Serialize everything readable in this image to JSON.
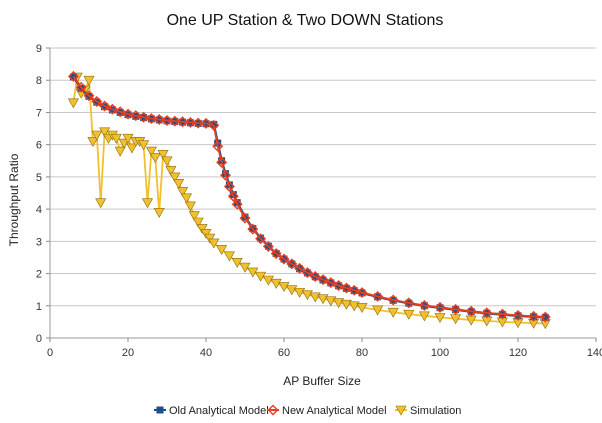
{
  "chart_data": {
    "type": "line",
    "title": "One UP Station & Two DOWN Stations",
    "xlabel": "AP Buffer Size",
    "ylabel": "Throughput Ratio",
    "xlim": [
      0,
      140
    ],
    "ylim": [
      0,
      9
    ],
    "x_ticks": [
      "0",
      "20",
      "40",
      "60",
      "80",
      "100",
      "120",
      "140"
    ],
    "y_ticks": [
      "0",
      "1",
      "2",
      "3",
      "4",
      "5",
      "6",
      "7",
      "8",
      "9"
    ],
    "grid": "horizontal",
    "legend_position": "bottom",
    "series": [
      {
        "name": "Old Analytical Model",
        "color": "#1f4e8c",
        "marker": "square",
        "points": [
          [
            6,
            8.1
          ],
          [
            8,
            7.75
          ],
          [
            10,
            7.5
          ],
          [
            12,
            7.32
          ],
          [
            14,
            7.18
          ],
          [
            16,
            7.08
          ],
          [
            18,
            7.0
          ],
          [
            20,
            6.93
          ],
          [
            22,
            6.88
          ],
          [
            24,
            6.84
          ],
          [
            26,
            6.8
          ],
          [
            28,
            6.77
          ],
          [
            30,
            6.74
          ],
          [
            32,
            6.72
          ],
          [
            34,
            6.7
          ],
          [
            36,
            6.68
          ],
          [
            38,
            6.66
          ],
          [
            40,
            6.65
          ],
          [
            42,
            6.63
          ],
          [
            43,
            6.05
          ],
          [
            44,
            5.5
          ],
          [
            45,
            5.1
          ],
          [
            46,
            4.75
          ],
          [
            47,
            4.45
          ],
          [
            48,
            4.2
          ],
          [
            50,
            3.75
          ],
          [
            52,
            3.4
          ],
          [
            54,
            3.1
          ],
          [
            56,
            2.85
          ],
          [
            58,
            2.62
          ],
          [
            60,
            2.45
          ],
          [
            62,
            2.3
          ],
          [
            64,
            2.15
          ],
          [
            66,
            2.02
          ],
          [
            68,
            1.9
          ],
          [
            70,
            1.8
          ],
          [
            72,
            1.71
          ],
          [
            74,
            1.62
          ],
          [
            76,
            1.54
          ],
          [
            78,
            1.47
          ],
          [
            80,
            1.4
          ],
          [
            84,
            1.28
          ],
          [
            88,
            1.17
          ],
          [
            92,
            1.08
          ],
          [
            96,
            1.0
          ],
          [
            100,
            0.94
          ],
          [
            104,
            0.88
          ],
          [
            108,
            0.82
          ],
          [
            112,
            0.77
          ],
          [
            116,
            0.73
          ],
          [
            120,
            0.69
          ],
          [
            124,
            0.66
          ],
          [
            127,
            0.64
          ]
        ]
      },
      {
        "name": "New Analytical Model",
        "color": "#e8401e",
        "marker": "diamond",
        "points": [
          [
            6,
            8.12
          ],
          [
            8,
            7.78
          ],
          [
            10,
            7.52
          ],
          [
            12,
            7.34
          ],
          [
            14,
            7.2
          ],
          [
            16,
            7.1
          ],
          [
            18,
            7.02
          ],
          [
            20,
            6.95
          ],
          [
            22,
            6.9
          ],
          [
            24,
            6.85
          ],
          [
            26,
            6.81
          ],
          [
            28,
            6.78
          ],
          [
            30,
            6.75
          ],
          [
            32,
            6.73
          ],
          [
            34,
            6.71
          ],
          [
            36,
            6.69
          ],
          [
            38,
            6.67
          ],
          [
            40,
            6.66
          ],
          [
            42,
            6.6
          ],
          [
            43,
            5.95
          ],
          [
            44,
            5.45
          ],
          [
            45,
            5.05
          ],
          [
            46,
            4.7
          ],
          [
            47,
            4.4
          ],
          [
            48,
            4.15
          ],
          [
            50,
            3.72
          ],
          [
            52,
            3.38
          ],
          [
            54,
            3.08
          ],
          [
            56,
            2.84
          ],
          [
            58,
            2.62
          ],
          [
            60,
            2.45
          ],
          [
            62,
            2.3
          ],
          [
            64,
            2.16
          ],
          [
            66,
            2.03
          ],
          [
            68,
            1.91
          ],
          [
            70,
            1.81
          ],
          [
            72,
            1.72
          ],
          [
            74,
            1.63
          ],
          [
            76,
            1.55
          ],
          [
            78,
            1.48
          ],
          [
            80,
            1.41
          ],
          [
            84,
            1.29
          ],
          [
            88,
            1.18
          ],
          [
            92,
            1.09
          ],
          [
            96,
            1.01
          ],
          [
            100,
            0.95
          ],
          [
            104,
            0.89
          ],
          [
            108,
            0.83
          ],
          [
            112,
            0.78
          ],
          [
            116,
            0.74
          ],
          [
            120,
            0.7
          ],
          [
            124,
            0.67
          ],
          [
            127,
            0.65
          ]
        ]
      },
      {
        "name": "Simulation",
        "color": "#f2c02c",
        "marker": "triangle-down",
        "points": [
          [
            6,
            7.3
          ],
          [
            7,
            8.1
          ],
          [
            8,
            7.6
          ],
          [
            9,
            7.7
          ],
          [
            10,
            8.0
          ],
          [
            11,
            6.1
          ],
          [
            12,
            6.3
          ],
          [
            13,
            4.2
          ],
          [
            14,
            6.4
          ],
          [
            15,
            6.2
          ],
          [
            16,
            6.3
          ],
          [
            17,
            6.2
          ],
          [
            18,
            5.8
          ],
          [
            19,
            6.05
          ],
          [
            20,
            6.2
          ],
          [
            21,
            5.9
          ],
          [
            22,
            6.1
          ],
          [
            23,
            6.1
          ],
          [
            24,
            6.0
          ],
          [
            25,
            4.2
          ],
          [
            26,
            5.8
          ],
          [
            27,
            5.6
          ],
          [
            28,
            3.9
          ],
          [
            29,
            5.7
          ],
          [
            30,
            5.5
          ],
          [
            31,
            5.2
          ],
          [
            32,
            5.0
          ],
          [
            33,
            4.8
          ],
          [
            34,
            4.55
          ],
          [
            35,
            4.35
          ],
          [
            36,
            4.1
          ],
          [
            37,
            3.8
          ],
          [
            38,
            3.6
          ],
          [
            39,
            3.4
          ],
          [
            40,
            3.25
          ],
          [
            41,
            3.1
          ],
          [
            42,
            2.95
          ],
          [
            44,
            2.75
          ],
          [
            46,
            2.55
          ],
          [
            48,
            2.35
          ],
          [
            50,
            2.2
          ],
          [
            52,
            2.05
          ],
          [
            54,
            1.92
          ],
          [
            56,
            1.8
          ],
          [
            58,
            1.7
          ],
          [
            60,
            1.6
          ],
          [
            62,
            1.5
          ],
          [
            64,
            1.42
          ],
          [
            66,
            1.35
          ],
          [
            68,
            1.28
          ],
          [
            70,
            1.22
          ],
          [
            72,
            1.16
          ],
          [
            74,
            1.1
          ],
          [
            76,
            1.05
          ],
          [
            78,
            1.0
          ],
          [
            80,
            0.95
          ],
          [
            84,
            0.87
          ],
          [
            88,
            0.8
          ],
          [
            92,
            0.74
          ],
          [
            96,
            0.69
          ],
          [
            100,
            0.64
          ],
          [
            104,
            0.6
          ],
          [
            108,
            0.56
          ],
          [
            112,
            0.53
          ],
          [
            116,
            0.5
          ],
          [
            120,
            0.48
          ],
          [
            124,
            0.46
          ],
          [
            127,
            0.45
          ]
        ]
      }
    ]
  }
}
